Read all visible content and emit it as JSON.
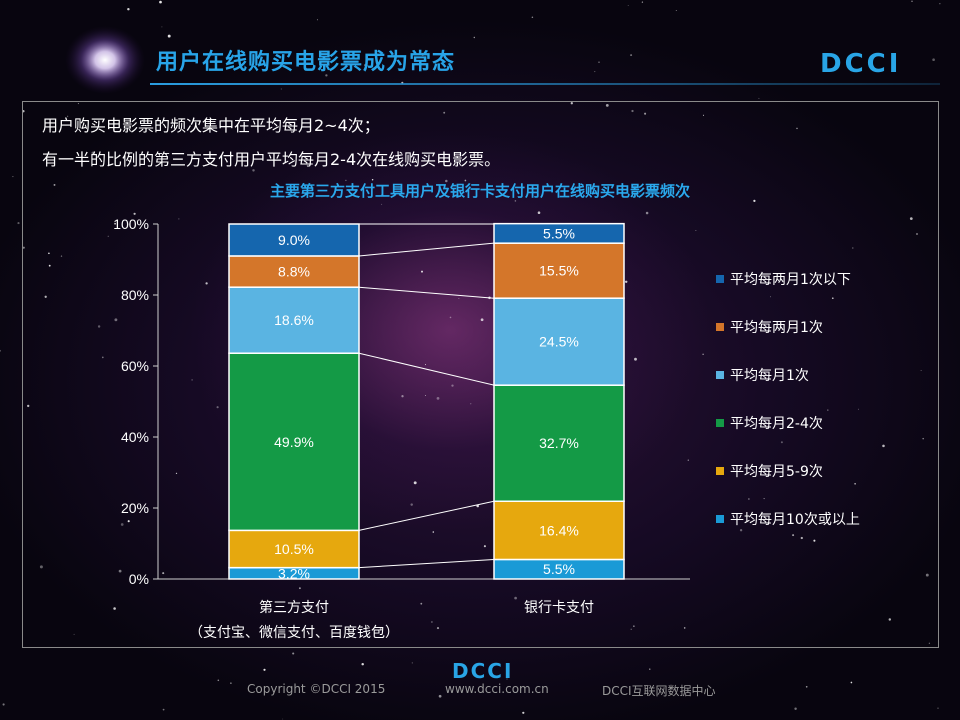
{
  "header": {
    "title": "用户在线购买电影票成为常态",
    "logo_text": "DCCI"
  },
  "notes": [
    "用户购买电影票的频次集中在平均每月2~4次；",
    "有一半的比例的第三方支付用户平均每月2-4次在线购买电影票。"
  ],
  "chart_data": {
    "type": "bar",
    "stacked": true,
    "title": "主要第三方支付工具用户及银行卡支付用户在线购买电影票频次",
    "categories": [
      {
        "line1": "第三方支付",
        "line2": "（支付宝、微信支付、百度钱包）"
      },
      {
        "line1": "银行卡支付",
        "line2": ""
      }
    ],
    "series": [
      {
        "name": "平均每月10次或以上",
        "values": [
          3.2,
          5.5
        ],
        "color": "#1a9ad6"
      },
      {
        "name": "平均每月5-9次",
        "values": [
          10.5,
          16.4
        ],
        "color": "#e6a80e"
      },
      {
        "name": "平均每月2-4次",
        "values": [
          49.9,
          32.7
        ],
        "color": "#149a46"
      },
      {
        "name": "平均每月1次",
        "values": [
          18.6,
          24.5
        ],
        "color": "#5ab4e2"
      },
      {
        "name": "平均每两月1次",
        "values": [
          8.8,
          15.5
        ],
        "color": "#d4762a"
      },
      {
        "name": "平均每两月1次以下",
        "values": [
          9.0,
          5.5
        ],
        "color": "#1566ae"
      }
    ],
    "yticks": [
      "0%",
      "20%",
      "40%",
      "60%",
      "80%",
      "100%"
    ],
    "ylim": [
      0,
      100
    ],
    "legend_position": "right",
    "grid": false
  },
  "footer": {
    "logo_text": "DCCI",
    "copyright": "Copyright ©DCCI 2015",
    "website": "www.dcci.com.cn",
    "org": "DCCI互联网数据中心"
  }
}
